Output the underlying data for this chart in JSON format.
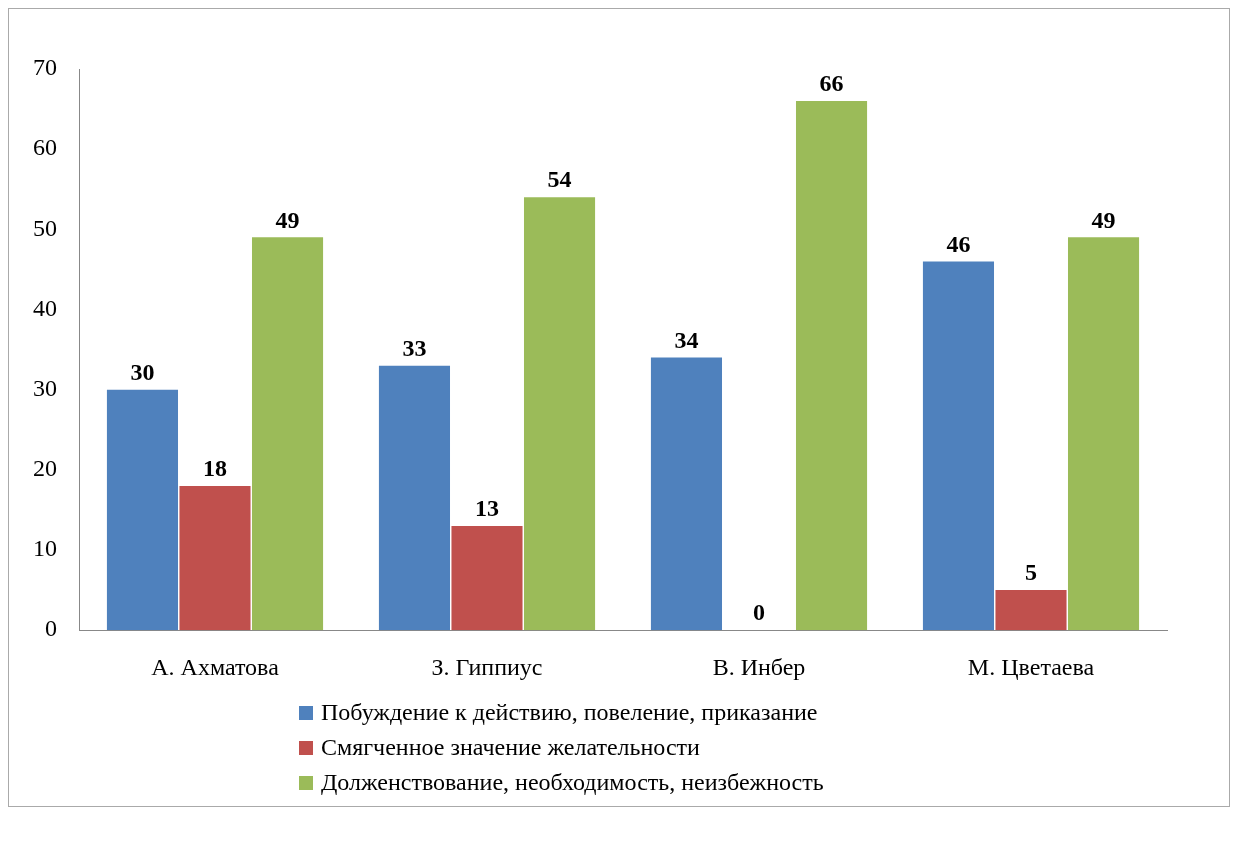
{
  "chart_data": {
    "type": "bar",
    "categories": [
      "А. Ахматова",
      "З. Гиппиус",
      "В. Инбер",
      "М. Цветаева"
    ],
    "series": [
      {
        "name": "Побуждение к действию, повеление, приказание",
        "color": "#4f81bd",
        "values": [
          30,
          33,
          34,
          46
        ]
      },
      {
        "name": "Смягченное значение желательности",
        "color": "#c0504d",
        "values": [
          18,
          13,
          0,
          5
        ]
      },
      {
        "name": "Долженствование, необходимость, неизбежность",
        "color": "#9bbb59",
        "values": [
          49,
          54,
          66,
          49
        ]
      }
    ],
    "ylim": [
      0,
      70
    ],
    "yticks": [
      0,
      10,
      20,
      30,
      40,
      50,
      60,
      70
    ],
    "data_labels": true,
    "grid": false,
    "legend": "bottom"
  }
}
